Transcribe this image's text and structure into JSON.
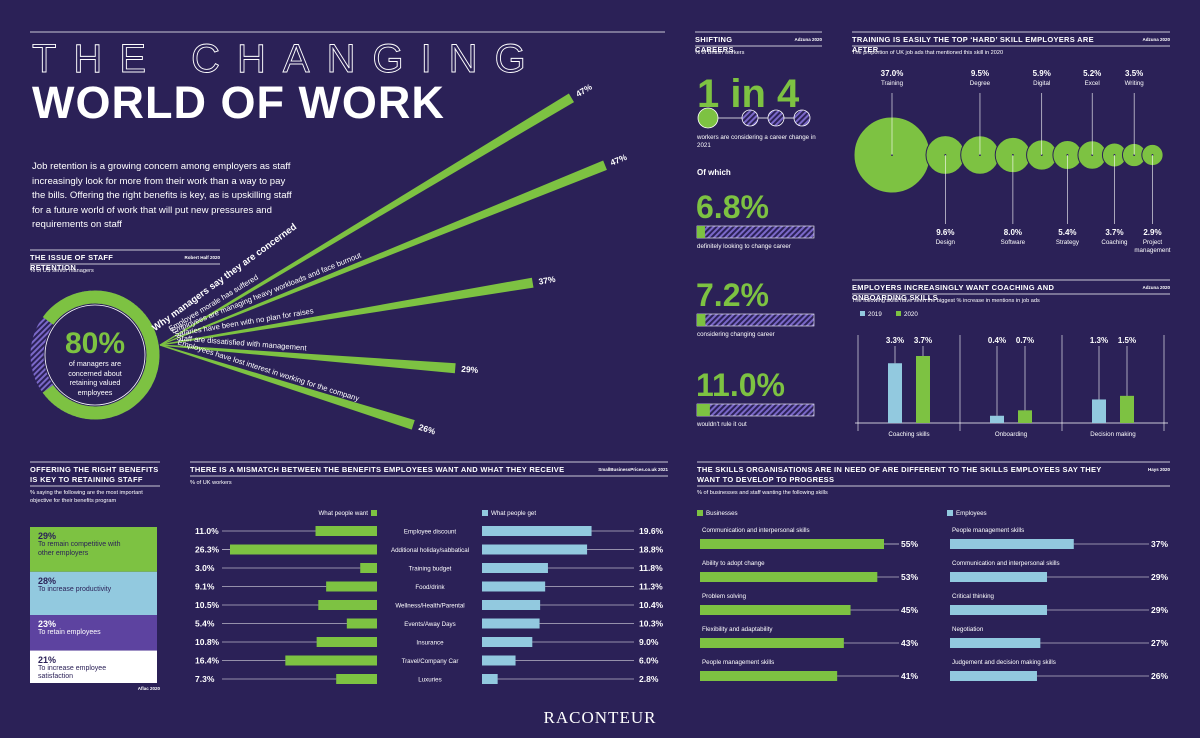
{
  "header": {
    "title_top": "THE CHANGING",
    "title_bottom": "WORLD OF WORK",
    "intro": "Job retention is a growing concern among employers as staff increasingly look for more from their work than a way to pay the bills. Offering the right benefits is key, as is upskilling staff for a future world of work that will put new pressures and requirements on staff"
  },
  "chart_data": [
    {
      "type": "fan",
      "title": "THE ISSUE OF STAFF RETENTION",
      "source": "Robert Half 2020",
      "subtitle": "% of US senior managers",
      "headline": {
        "value": 80,
        "label": "80%",
        "text": "of managers are concerned about retaining valued employees"
      },
      "rlim": [
        0,
        100
      ],
      "series_title": "Why managers say they are concerned",
      "categories": [
        "Employee morale has suffered",
        "Employees are managing heavy workloads and face burnout",
        "Salaries have been with no plan for raises",
        "Staff are dissatisfied with management",
        "Employees have lost interest in working for the company"
      ],
      "values": [
        47,
        47,
        37,
        29,
        26
      ],
      "value_labels": [
        "47%",
        "47%",
        "37%",
        "29%",
        "26%"
      ],
      "color": "#7dc242"
    },
    {
      "type": "progress",
      "title": "SHIFTING CAREERS",
      "source": "Adzuna 2020",
      "subtitle": "% of British workers",
      "headline": "1 in 4",
      "headline_text": "workers are considering a career change in 2021",
      "group_label": "Of which",
      "categories": [
        "definitely looking to change career",
        "considering changing career",
        "wouldn't rule it out"
      ],
      "values": [
        6.8,
        7.2,
        11.0
      ],
      "value_labels": [
        "6.8%",
        "7.2%",
        "11.0%"
      ],
      "xlim": [
        0,
        100
      ],
      "color": "#7dc242"
    },
    {
      "type": "bubble",
      "title": "TRAINING IS EASILY THE TOP ‘HARD’ SKILL EMPLOYERS ARE AFTER",
      "source": "Adzuna 2020",
      "subtitle": "The proportion of UK job ads that mentioned this skill in 2020",
      "categories": [
        "Training",
        "Design",
        "Degree",
        "Software",
        "Digital",
        "Strategy",
        "Excel",
        "Coaching",
        "Writing",
        "Project management"
      ],
      "values": [
        37.0,
        9.6,
        9.5,
        8.0,
        5.9,
        5.4,
        5.2,
        3.7,
        3.5,
        2.9
      ],
      "value_labels": [
        "37.0%",
        "9.6%",
        "9.5%",
        "8.0%",
        "5.9%",
        "5.4%",
        "5.2%",
        "3.7%",
        "3.5%",
        "2.9%"
      ],
      "color": "#7dc242"
    },
    {
      "type": "grouped-bar",
      "title": "EMPLOYERS INCREASINGLY WANT COACHING AND ONBOARDING SKILLS",
      "source": "Adzuna 2020",
      "subtitle": "The following skills have seen the biggest % increase in mentions in job ads",
      "categories": [
        "Coaching skills",
        "Onboarding",
        "Decision making"
      ],
      "series": [
        {
          "name": "2019",
          "color": "#92c9df",
          "values": [
            3.3,
            0.4,
            1.3
          ],
          "value_labels": [
            "3.3%",
            "0.4%",
            "1.3%"
          ]
        },
        {
          "name": "2020",
          "color": "#7dc242",
          "values": [
            3.7,
            0.7,
            1.5
          ],
          "value_labels": [
            "3.7%",
            "0.7%",
            "1.5%"
          ]
        }
      ]
    },
    {
      "type": "stacked-column",
      "title": "OFFERING THE RIGHT BENEFITS IS KEY TO RETAINING STAFF",
      "source": "Aflac 2020",
      "subtitle": "% saying the following are the most important objective for their benefits program",
      "categories": [
        "To remain competitive with other employers",
        "To increase productivity",
        "To retain employees",
        "To increase employee satisfaction"
      ],
      "values": [
        29,
        28,
        23,
        21
      ],
      "value_labels": [
        "29%",
        "28%",
        "23%",
        "21%"
      ],
      "colors": [
        "#7dc242",
        "#92c9df",
        "#5d43a0",
        "#ffffff"
      ]
    },
    {
      "type": "diverging-bar",
      "title": "THERE IS A MISMATCH BETWEEN THE BENEFITS EMPLOYEES WANT AND WHAT THEY RECEIVE",
      "source": "SmallBusinessPrices.co.uk 2021",
      "subtitle": "% of UK workers",
      "categories": [
        "Employee discount",
        "Additional holiday/sabbatical",
        "Training budget",
        "Food/drink",
        "Wellness/Health/Parental",
        "Events/Away Days",
        "Insurance",
        "Travel/Company Car",
        "Luxuries"
      ],
      "series": [
        {
          "name": "What people want",
          "color": "#7dc242",
          "values": [
            11.0,
            26.3,
            3.0,
            9.1,
            10.5,
            5.4,
            10.8,
            16.4,
            7.3
          ],
          "value_labels": [
            "11.0%",
            "26.3%",
            "3.0%",
            "9.1%",
            "10.5%",
            "5.4%",
            "10.8%",
            "16.4%",
            "7.3%"
          ]
        },
        {
          "name": "What people get",
          "color": "#92c9df",
          "values": [
            19.6,
            18.8,
            11.8,
            11.3,
            10.4,
            10.3,
            9.0,
            6.0,
            2.8
          ],
          "value_labels": [
            "19.6%",
            "18.8%",
            "11.8%",
            "11.3%",
            "10.4%",
            "10.3%",
            "9.0%",
            "6.0%",
            "2.8%"
          ]
        }
      ]
    },
    {
      "type": "paired-hbar",
      "title": "THE SKILLS ORGANISATIONS ARE IN NEED OF ARE DIFFERENT TO THE SKILLS EMPLOYEES SAY THEY WANT TO DEVELOP TO PROGRESS",
      "source": "Hays 2020",
      "subtitle": "% of businesses and staff wanting the following skills",
      "series": [
        {
          "name": "Businesses",
          "color": "#7dc242",
          "categories": [
            "Communication and interpersonal skills",
            "Ability to adopt change",
            "Problem solving",
            "Flexibility and adaptability",
            "People management skills"
          ],
          "values": [
            55,
            53,
            45,
            43,
            41
          ],
          "value_labels": [
            "55%",
            "53%",
            "45%",
            "43%",
            "41%"
          ]
        },
        {
          "name": "Employees",
          "color": "#92c9df",
          "categories": [
            "People management skills",
            "Communication and interpersonal skills",
            "Critical thinking",
            "Negotiation",
            "Judgement and decision making skills"
          ],
          "values": [
            37,
            29,
            29,
            27,
            26
          ],
          "value_labels": [
            "37%",
            "29%",
            "29%",
            "27%",
            "26%"
          ]
        }
      ]
    }
  ],
  "footer": {
    "brand": "RACONTEUR"
  }
}
